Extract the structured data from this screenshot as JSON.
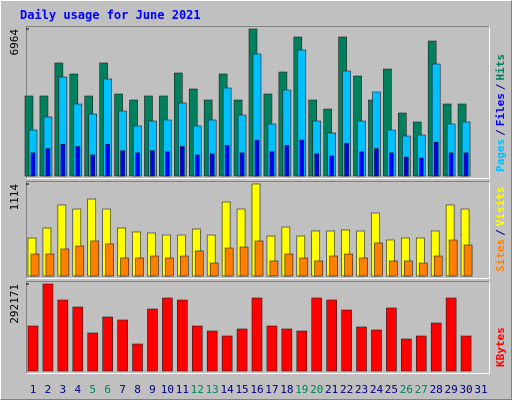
{
  "chart_data": [
    {
      "type": "bar",
      "title": "Daily usage for June 2021",
      "ylim": [
        0,
        6964
      ],
      "yticks": [
        6964
      ],
      "separator": "/",
      "series": [
        {
          "name": "Hits",
          "color": "#00805c",
          "values": [
            3790,
            3790,
            5353,
            4832,
            3790,
            5353,
            3884,
            3600,
            3790,
            3790,
            4879,
            4121,
            3600,
            4832,
            3600,
            6964,
            3884,
            4926,
            6584,
            3600,
            3174,
            6584,
            4737,
            3600,
            5068,
            2984,
            2558,
            6395,
            3411,
            3411,
            0
          ]
        },
        {
          "name": "Files",
          "color": "#0000ff",
          "values": [
            1100,
            1300,
            1500,
            1400,
            1000,
            1500,
            1200,
            1100,
            1200,
            1150,
            1400,
            1000,
            1050,
            1450,
            1100,
            1700,
            1150,
            1450,
            1700,
            1050,
            950,
            1550,
            1150,
            1300,
            1100,
            900,
            850,
            1600,
            1100,
            1100,
            0
          ]
        },
        {
          "name": "Pages",
          "color": "#00c0ff",
          "values": [
            2179,
            2795,
            4690,
            3411,
            2937,
            4595,
            3079,
            2369,
            2605,
            2653,
            3458,
            2369,
            2653,
            4169,
            2890,
            5779,
            2463,
            4074,
            5969,
            2605,
            2037,
            4974,
            2605,
            3979,
            2179,
            1895,
            1942,
            5305,
            2463,
            2558,
            0
          ]
        }
      ]
    },
    {
      "type": "bar",
      "ylim": [
        0,
        1114
      ],
      "yticks": [
        1114
      ],
      "separator": "/",
      "series": [
        {
          "name": "Visits",
          "color": "#ffff00",
          "values": [
            460,
            581,
            860,
            811,
            932,
            811,
            581,
            533,
            521,
            496,
            496,
            569,
            496,
            896,
            811,
            1114,
            484,
            593,
            484,
            545,
            545,
            557,
            545,
            763,
            436,
            460,
            460,
            545,
            860,
            811,
            0
          ]
        },
        {
          "name": "Sites",
          "color": "#ff8000",
          "values": [
            266,
            266,
            327,
            363,
            424,
            388,
            218,
            218,
            242,
            218,
            242,
            303,
            157,
            339,
            351,
            424,
            182,
            266,
            218,
            182,
            242,
            266,
            218,
            400,
            182,
            182,
            157,
            242,
            436,
            375,
            0
          ]
        }
      ]
    },
    {
      "type": "bar",
      "ylim": [
        0,
        292171
      ],
      "yticks": [
        292171
      ],
      "categories": [
        "1",
        "2",
        "3",
        "4",
        "5",
        "6",
        "7",
        "8",
        "9",
        "10",
        "11",
        "12",
        "13",
        "14",
        "15",
        "16",
        "17",
        "18",
        "19",
        "20",
        "21",
        "22",
        "23",
        "24",
        "25",
        "26",
        "27",
        "28",
        "29",
        "30",
        "31"
      ],
      "category_colors": [
        "#000080",
        "#000080",
        "#000080",
        "#000080",
        "#00805c",
        "#00805c",
        "#000080",
        "#000080",
        "#000080",
        "#000080",
        "#000080",
        "#00805c",
        "#00805c",
        "#000080",
        "#000080",
        "#000080",
        "#000080",
        "#000080",
        "#00805c",
        "#00805c",
        "#000080",
        "#000080",
        "#000080",
        "#000080",
        "#000080",
        "#00805c",
        "#00805c",
        "#000080",
        "#000080",
        "#000080",
        "#000080"
      ],
      "series": [
        {
          "name": "KBytes",
          "color": "#ff0000",
          "values": [
            151110,
            292171,
            238418,
            214912,
            127604,
            181332,
            171258,
            90666,
            208196,
            245134,
            238418,
            151110,
            134320,
            117530,
            141036,
            245134,
            151110,
            141036,
            134320,
            245134,
            238418,
            204838,
            147752,
            137678,
            211554,
            107456,
            117530,
            161184,
            245134,
            117530,
            0
          ]
        }
      ]
    }
  ]
}
